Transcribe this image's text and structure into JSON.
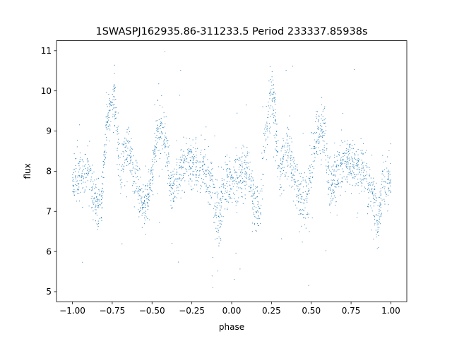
{
  "chart_data": {
    "type": "scatter",
    "title": "1SWASPJ162935.86-311233.5 Period 233337.85938s",
    "xlabel": "phase",
    "ylabel": "flux",
    "xlim": [
      -1.1,
      1.1
    ],
    "ylim": [
      4.75,
      11.25
    ],
    "x_ticks": [
      -1.0,
      -0.75,
      -0.5,
      -0.25,
      0.0,
      0.25,
      0.5,
      0.75,
      1.0
    ],
    "x_tick_labels": [
      "−1.00",
      "−0.75",
      "−0.50",
      "−0.25",
      "0.00",
      "0.25",
      "0.50",
      "0.75",
      "1.00"
    ],
    "y_ticks": [
      5,
      6,
      7,
      8,
      9,
      10,
      11
    ],
    "y_tick_labels": [
      "5",
      "6",
      "7",
      "8",
      "9",
      "10",
      "11"
    ],
    "grid": false,
    "marker": "point",
    "color": "#1f77b4",
    "period_phase_range": [
      -1.0,
      1.0
    ],
    "phase_profile": [
      {
        "x": -1.0,
        "y": 7.8
      },
      {
        "x": -0.95,
        "y": 7.9
      },
      {
        "x": -0.9,
        "y": 8.0
      },
      {
        "x": -0.86,
        "y": 7.3
      },
      {
        "x": -0.82,
        "y": 7.0
      },
      {
        "x": -0.79,
        "y": 9.0
      },
      {
        "x": -0.74,
        "y": 9.9
      },
      {
        "x": -0.7,
        "y": 8.0
      },
      {
        "x": -0.65,
        "y": 8.6
      },
      {
        "x": -0.6,
        "y": 7.8
      },
      {
        "x": -0.56,
        "y": 7.1
      },
      {
        "x": -0.52,
        "y": 7.4
      },
      {
        "x": -0.47,
        "y": 8.9
      },
      {
        "x": -0.42,
        "y": 9.0
      },
      {
        "x": -0.38,
        "y": 7.5
      },
      {
        "x": -0.33,
        "y": 8.0
      },
      {
        "x": -0.27,
        "y": 8.3
      },
      {
        "x": -0.22,
        "y": 8.1
      },
      {
        "x": -0.17,
        "y": 8.0
      },
      {
        "x": -0.12,
        "y": 7.6
      },
      {
        "x": -0.08,
        "y": 6.7
      },
      {
        "x": -0.05,
        "y": 7.7
      },
      {
        "x": 0.0,
        "y": 7.8
      },
      {
        "x": 0.05,
        "y": 7.9
      },
      {
        "x": 0.1,
        "y": 8.0
      },
      {
        "x": 0.14,
        "y": 7.3
      },
      {
        "x": 0.18,
        "y": 7.0
      },
      {
        "x": 0.21,
        "y": 9.0
      },
      {
        "x": 0.26,
        "y": 9.9
      },
      {
        "x": 0.3,
        "y": 8.0
      },
      {
        "x": 0.35,
        "y": 8.6
      },
      {
        "x": 0.4,
        "y": 7.8
      },
      {
        "x": 0.44,
        "y": 7.1
      },
      {
        "x": 0.48,
        "y": 7.4
      },
      {
        "x": 0.53,
        "y": 8.9
      },
      {
        "x": 0.58,
        "y": 9.0
      },
      {
        "x": 0.62,
        "y": 7.5
      },
      {
        "x": 0.67,
        "y": 8.0
      },
      {
        "x": 0.73,
        "y": 8.3
      },
      {
        "x": 0.78,
        "y": 8.1
      },
      {
        "x": 0.83,
        "y": 8.0
      },
      {
        "x": 0.88,
        "y": 7.6
      },
      {
        "x": 0.92,
        "y": 6.7
      },
      {
        "x": 0.95,
        "y": 7.7
      },
      {
        "x": 1.0,
        "y": 7.8
      }
    ]
  }
}
